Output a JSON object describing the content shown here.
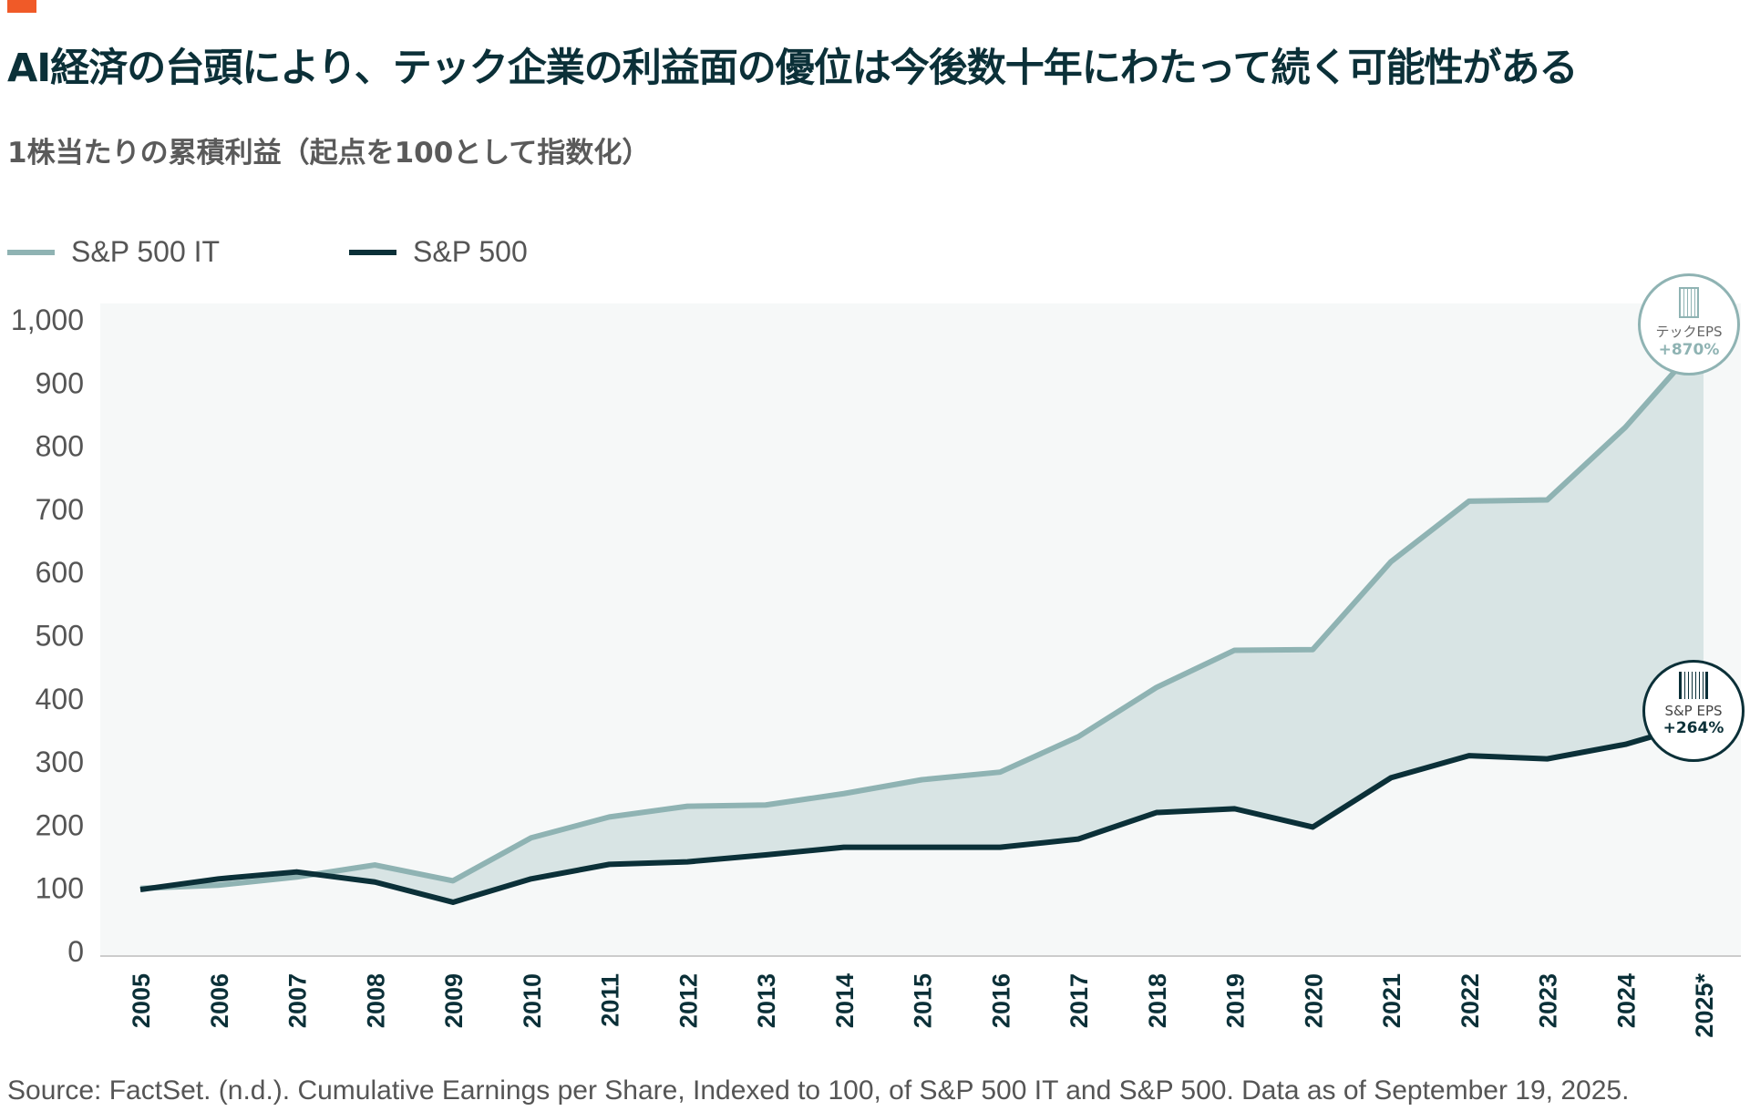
{
  "title": "AI経済の台頭により、テック企業の利益面の優位は今後数十年にわたって続く可能性がある",
  "subtitle": "1株当たりの累積利益（起点を100として指数化）",
  "source": "Source: FactSet. (n.d.). Cumulative Earnings per Share, Indexed to 100, of S&P 500 IT and S&P 500. Data as of September 19, 2025.",
  "colors": {
    "accent": "#f05a28",
    "it": "#8fb3b3",
    "sp": "#0b3038",
    "fill": "#d8e4e4",
    "plot_bg": "#f6f8f8"
  },
  "annotations": {
    "it": {
      "label": "テックEPS",
      "value": "+870%",
      "icon": "tech-building-icon"
    },
    "sp": {
      "label": "S&P EPS",
      "value": "+264%",
      "icon": "buildings-icon"
    }
  },
  "chart_data": {
    "type": "line",
    "title": "1株当たりの累積利益（起点を100として指数化）",
    "xlabel": "",
    "ylabel": "",
    "ylim": [
      0,
      1000
    ],
    "yticks": [
      "0",
      "100",
      "200",
      "300",
      "400",
      "500",
      "600",
      "700",
      "800",
      "900",
      "1,000"
    ],
    "categories": [
      "2005",
      "2006",
      "2007",
      "2008",
      "2009",
      "2010",
      "2011",
      "2012",
      "2013",
      "2014",
      "2015",
      "2016",
      "2017",
      "2018",
      "2019",
      "2020",
      "2021",
      "2022",
      "2023",
      "2024",
      "2025*"
    ],
    "series": [
      {
        "name": "S&P 500 IT",
        "values": [
          100,
          105,
          118,
          137,
          112,
          180,
          213,
          230,
          232,
          250,
          272,
          284,
          340,
          418,
          477,
          478,
          617,
          713,
          715,
          830,
          970
        ]
      },
      {
        "name": "S&P 500",
        "values": [
          98,
          115,
          126,
          110,
          78,
          115,
          138,
          142,
          153,
          165,
          165,
          165,
          178,
          220,
          226,
          197,
          275,
          310,
          305,
          328,
          364
        ]
      }
    ],
    "legend": "top-left",
    "grid": false
  }
}
